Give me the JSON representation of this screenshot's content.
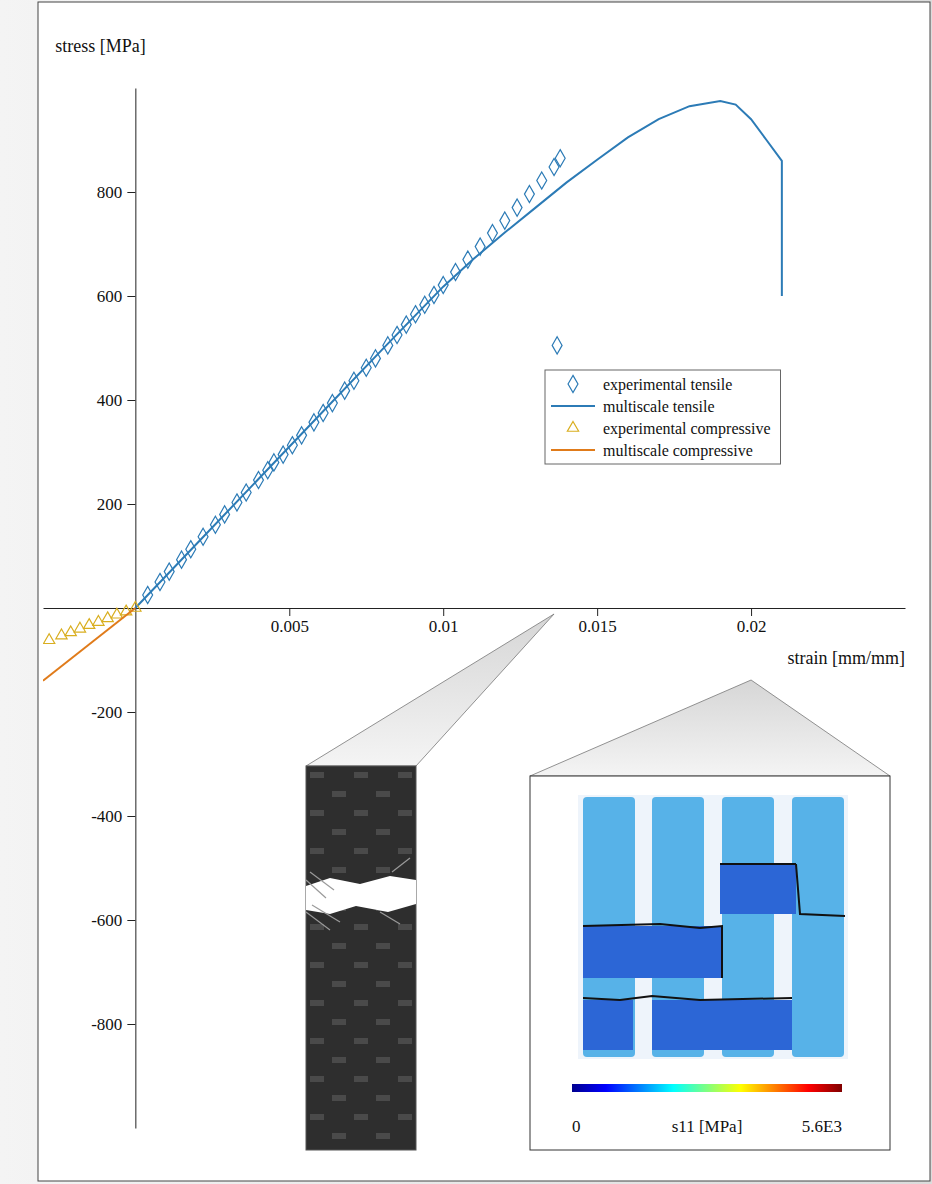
{
  "chart_data": {
    "type": "line",
    "x_label": "strain [mm/mm]",
    "y_label": "stress [MPa]",
    "xlim": [
      -0.003,
      0.025
    ],
    "ylim": [
      -1000,
      1000
    ],
    "xticks": [
      0.005,
      0.01,
      0.015,
      0.02
    ],
    "yticks": [
      -800,
      -600,
      -400,
      -200,
      200,
      400,
      600,
      800
    ],
    "legend": "right",
    "series": [
      {
        "name": "experimental tensile",
        "type": "scatter",
        "marker": "diamond",
        "color": "#2c7bb6",
        "x": [
          0.0004,
          0.0008,
          0.0011,
          0.0015,
          0.0018,
          0.0022,
          0.0026,
          0.0029,
          0.0033,
          0.0036,
          0.004,
          0.0043,
          0.0045,
          0.0048,
          0.0051,
          0.0054,
          0.0058,
          0.0061,
          0.0064,
          0.0068,
          0.0071,
          0.0075,
          0.0078,
          0.0082,
          0.0085,
          0.0088,
          0.0091,
          0.0094,
          0.0097,
          0.01,
          0.0104,
          0.0108,
          0.0112,
          0.0116,
          0.012,
          0.0124,
          0.0128,
          0.0132,
          0.0136,
          0.0138,
          0.0137
        ],
        "values": [
          25,
          50,
          70,
          93,
          113,
          137,
          160,
          180,
          203,
          222,
          246,
          265,
          280,
          295,
          313,
          332,
          357,
          375,
          394,
          418,
          437,
          462,
          480,
          505,
          525,
          545,
          565,
          583,
          602,
          621,
          646,
          670,
          695,
          721,
          745,
          770,
          796,
          822,
          848,
          865,
          505
        ]
      },
      {
        "name": "multiscale tensile",
        "type": "line",
        "line_style": "solid",
        "color": "#2c7bb6",
        "x": [
          0,
          0.002,
          0.004,
          0.006,
          0.008,
          0.01,
          0.011,
          0.012,
          0.013,
          0.014,
          0.015,
          0.016,
          0.017,
          0.018,
          0.019,
          0.0195,
          0.02,
          0.0205,
          0.021,
          0.021
        ],
        "values": [
          0,
          124,
          248,
          372,
          496,
          618,
          672,
          722,
          770,
          818,
          862,
          905,
          940,
          965,
          975,
          968,
          940,
          900,
          860,
          600
        ]
      },
      {
        "name": "experimental compressive",
        "type": "scatter",
        "marker": "triangle",
        "color": "#d9ae1f",
        "x": [
          0,
          -0.0003,
          -0.0006,
          -0.0009,
          -0.0012,
          -0.0015,
          -0.0018,
          -0.0021,
          -0.0024,
          -0.0028
        ],
        "values": [
          0,
          -7,
          -13,
          -20,
          -27,
          -33,
          -40,
          -47,
          -53,
          -62
        ]
      },
      {
        "name": "multiscale compressive",
        "type": "line",
        "line_style": "solid",
        "color": "#e07b1a",
        "x": [
          0,
          -0.003
        ],
        "values": [
          0,
          -140
        ]
      }
    ],
    "inset_strains": [
      0.0136,
      0.02
    ],
    "colorbar": {
      "label": "s11 [MPa]",
      "range": [
        0,
        5600
      ],
      "ticks": [
        0,
        {
          "value": 5600,
          "label": "5.6E3"
        }
      ]
    }
  }
}
